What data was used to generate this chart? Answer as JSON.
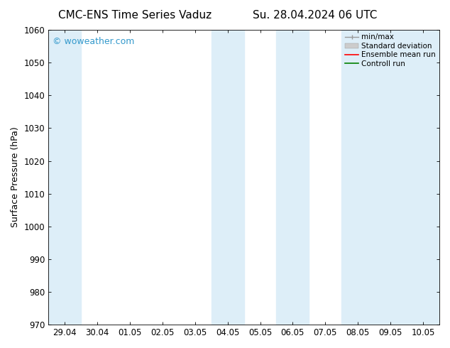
{
  "title_left": "CMC-ENS Time Series Vaduz",
  "title_right": "Su. 28.04.2024 06 UTC",
  "ylabel": "Surface Pressure (hPa)",
  "ylim": [
    970,
    1060
  ],
  "yticks": [
    970,
    980,
    990,
    1000,
    1010,
    1020,
    1030,
    1040,
    1050,
    1060
  ],
  "xtick_labels": [
    "29.04",
    "30.04",
    "01.05",
    "02.05",
    "03.05",
    "04.05",
    "05.05",
    "06.05",
    "07.05",
    "08.05",
    "09.05",
    "10.05"
  ],
  "shaded_bands": [
    {
      "xstart": -0.5,
      "xend": 0.5,
      "color": "#ddeef8"
    },
    {
      "xstart": 4.5,
      "xend": 5.5,
      "color": "#ddeef8"
    },
    {
      "xstart": 6.5,
      "xend": 7.5,
      "color": "#ddeef8"
    },
    {
      "xstart": 8.5,
      "xend": 11.5,
      "color": "#ddeef8"
    }
  ],
  "watermark": "© woweather.com",
  "watermark_color": "#3399cc",
  "legend_items": [
    {
      "label": "min/max",
      "color": "#aaaaaa",
      "style": "errorbar"
    },
    {
      "label": "Standard deviation",
      "color": "#cccccc",
      "style": "bar"
    },
    {
      "label": "Ensemble mean run",
      "color": "#ff0000",
      "style": "line"
    },
    {
      "label": "Controll run",
      "color": "#008000",
      "style": "line"
    }
  ],
  "background_color": "#ffffff",
  "spine_color": "#000000",
  "title_fontsize": 11,
  "tick_fontsize": 8.5,
  "ylabel_fontsize": 9,
  "legend_fontsize": 7.5,
  "watermark_fontsize": 9
}
